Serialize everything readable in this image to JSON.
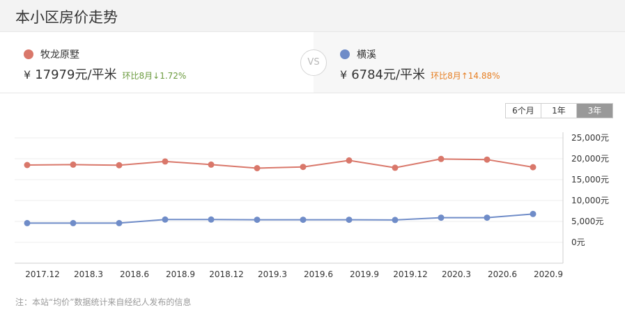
{
  "page": {
    "title": "本小区房价走势"
  },
  "compare": {
    "left": {
      "name": "牧龙原墅",
      "currency": "¥",
      "price": "17979元/平米",
      "mom": "环比8月↓1.72%",
      "dot_color": "#d9776a",
      "mom_color": "#6a9a3d"
    },
    "vs": "VS",
    "right": {
      "name": "横溪",
      "currency": "¥",
      "price": "6784元/平米",
      "mom": "环比8月↑14.88%",
      "dot_color": "#6f8cc8",
      "mom_color": "#e67e22"
    }
  },
  "range_tabs": [
    {
      "label": "6个月",
      "active": false
    },
    {
      "label": "1年",
      "active": false
    },
    {
      "label": "3年",
      "active": true
    }
  ],
  "chart_data": {
    "type": "line",
    "x": [
      "2017.12",
      "2018.3",
      "2018.6",
      "2018.9",
      "2018.12",
      "2019.3",
      "2019.6",
      "2019.9",
      "2019.12",
      "2020.3",
      "2020.6",
      "2020.9"
    ],
    "series": [
      {
        "name": "牧龙原墅",
        "color": "#d9776a",
        "values": [
          18500,
          18600,
          18450,
          19350,
          18600,
          17750,
          18050,
          19600,
          17850,
          19950,
          19800,
          17979
        ]
      },
      {
        "name": "横溪",
        "color": "#6f8cc8",
        "values": [
          4600,
          4600,
          4600,
          5450,
          5450,
          5400,
          5400,
          5400,
          5350,
          5900,
          5900,
          6784
        ]
      }
    ],
    "y_ticks": [
      "25,000元",
      "20,000元",
      "15,000元",
      "10,000元",
      "5,000元",
      "0元"
    ],
    "ylim": [
      0,
      25000
    ],
    "grid": true,
    "title": "",
    "xlabel": "",
    "ylabel": ""
  },
  "footnote": "注：本站“均价”数据统计来自经纪人发布的信息"
}
